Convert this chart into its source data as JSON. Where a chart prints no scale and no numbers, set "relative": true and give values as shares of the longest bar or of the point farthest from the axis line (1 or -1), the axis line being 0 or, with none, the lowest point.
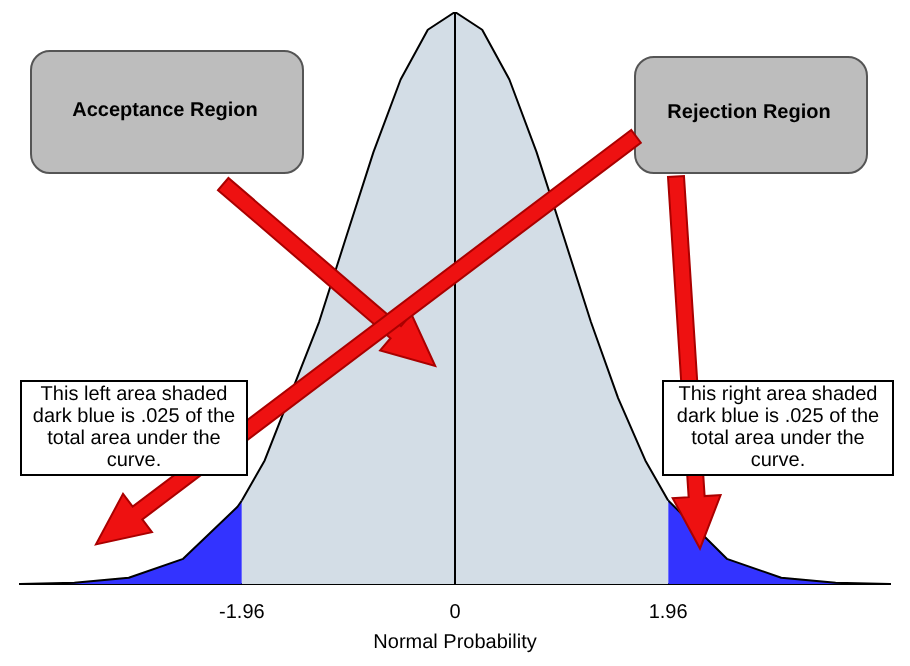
{
  "chart_data": {
    "type": "area",
    "relative": true,
    "xlabel": "Normal Probability",
    "xlim": [
      -4,
      4
    ],
    "xticks": [
      {
        "value": -1.96,
        "label": "-1.96"
      },
      0,
      {
        "value": 1.96,
        "label": "1.96"
      }
    ],
    "grid": false,
    "legend": false,
    "series": [
      {
        "color": "#3333ff",
        "x": [
          -4,
          -3.5,
          -3,
          -2.5,
          -2,
          -1.96
        ],
        "values": [
          0,
          0.002,
          0.011,
          0.044,
          0.135,
          0.146
        ]
      },
      {
        "color": "#d3dde6",
        "x": [
          -1.96,
          -1.75,
          -1.25,
          -1,
          -0.75,
          -0.5,
          -0.25,
          0,
          0.25,
          0.5,
          0.75,
          1,
          1.25,
          1.5,
          1.75,
          1.96
        ],
        "values": [
          0.146,
          0.216,
          0.458,
          0.607,
          0.755,
          0.882,
          0.969,
          1,
          0.969,
          0.882,
          0.755,
          0.607,
          0.458,
          0.325,
          0.216,
          0.146
        ]
      },
      {
        "color": "#3333ff",
        "x": [
          1.96,
          2.5,
          3,
          3.5,
          4
        ],
        "values": [
          0.146,
          0.044,
          0.011,
          0.002,
          0
        ]
      }
    ],
    "ref_lines": [
      {
        "axis": "x",
        "value": 0,
        "color": "#000000"
      }
    ],
    "annotations": [
      "Acceptance Region",
      "Rejection Region",
      "This left area shaded dark blue is .025 of the total area under the curve.",
      "This right area shaded dark blue is .025 of the total area under the curve."
    ]
  }
}
